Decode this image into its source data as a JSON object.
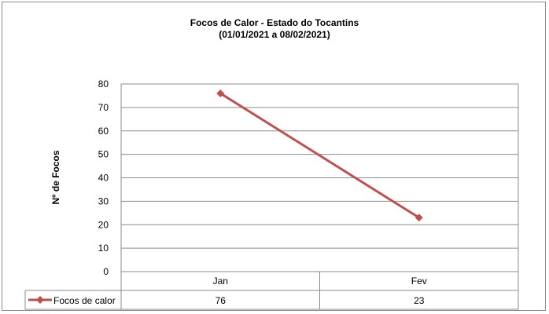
{
  "chart_data": {
    "type": "line",
    "title": "Focos de Calor - Estado do Tocantins",
    "subtitle": "(01/01/2021 a 08/02/2021)",
    "xlabel": "",
    "ylabel": "Nº de Focos",
    "categories": [
      "Jan",
      "Fev"
    ],
    "series": [
      {
        "name": "Focos de calor",
        "values": [
          76,
          23
        ],
        "color": "#c0504d"
      }
    ],
    "yticks": [
      0,
      10,
      20,
      30,
      40,
      50,
      60,
      70,
      80
    ],
    "ylim": [
      0,
      80
    ],
    "grid": true,
    "legend": "data-table-left"
  }
}
